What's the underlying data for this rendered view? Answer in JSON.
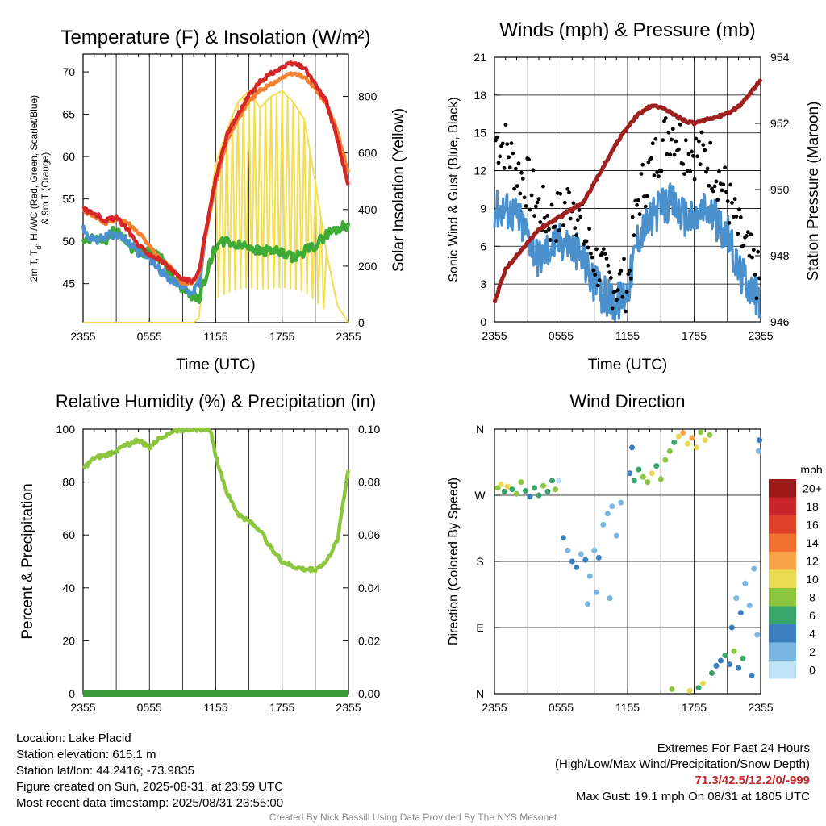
{
  "chart_data": [
    {
      "type": "line",
      "title": "Temperature (F) & Insolation (W/m²)",
      "xlabel": "Time (UTC)",
      "ylabel": "2m T, Td, HI/WC (Red, Green, Scarlet/Blue) & 9m T (Orange)",
      "ylabel_parts": [
        "2m T, T",
        "d",
        ", HI/WC (Red, Green, Scarlet/Blue)",
        "& 9m T (Orange)"
      ],
      "y2label": "Solar Insolation (Yellow)",
      "x_ticks": [
        "2355",
        "0555",
        "1155",
        "1755",
        "2355"
      ],
      "ylim": [
        40.4,
        72.1
      ],
      "y_ticks": [
        45,
        50,
        55,
        60,
        65,
        70
      ],
      "y2lim": [
        0,
        950
      ],
      "y2_ticks": [
        0,
        200,
        400,
        600,
        800
      ],
      "hours_offset": [
        0,
        1,
        2,
        3,
        4,
        5,
        6,
        7,
        8,
        9,
        10,
        10.5,
        11,
        12,
        13,
        14,
        15,
        16,
        17,
        18,
        19,
        20,
        21,
        22,
        23,
        24
      ],
      "series": [
        {
          "name": "2m T",
          "color": "#d62728",
          "axis": "left",
          "values": [
            53.8,
            53.3,
            52.5,
            52.8,
            51.5,
            49.5,
            48.5,
            47.8,
            46.5,
            45.5,
            45.3,
            46.5,
            50.5,
            57.5,
            62.5,
            65.0,
            67.2,
            68.8,
            69.8,
            70.5,
            71.0,
            70.5,
            68.5,
            66.5,
            62.0,
            56.5
          ]
        },
        {
          "name": "9m T",
          "color": "#f58231",
          "axis": "left",
          "values": [
            53.6,
            53.0,
            52.2,
            52.6,
            52.2,
            51.0,
            49.6,
            47.8,
            46.8,
            45.0,
            45.2,
            46.2,
            50.2,
            57.0,
            61.8,
            64.5,
            66.5,
            67.8,
            68.5,
            69.3,
            69.8,
            69.4,
            68.0,
            66.2,
            63.0,
            58.0
          ]
        },
        {
          "name": "Td",
          "color": "#3cab38",
          "axis": "left",
          "values": [
            49.8,
            50.3,
            50.0,
            51.5,
            49.8,
            48.5,
            49.0,
            48.0,
            46.0,
            44.5,
            43.5,
            43.2,
            45.5,
            49.5,
            50.0,
            49.5,
            49.5,
            48.8,
            49.0,
            48.5,
            48.0,
            48.8,
            49.5,
            50.8,
            51.5,
            52.0
          ]
        },
        {
          "name": "HI/WC",
          "color": "#4a90cc",
          "axis": "left",
          "values": [
            51.5,
            50.0,
            50.5,
            51.0,
            50.0,
            48.5,
            48.0,
            46.5,
            45.5,
            44.5,
            44.0,
            45.0,
            49.8
          ]
        },
        {
          "name": "Insolation",
          "color": "#f2de55",
          "axis": "right",
          "values": [
            0,
            0,
            0,
            0,
            0,
            0,
            0,
            0,
            0,
            0,
            0,
            20,
            300,
            560,
            680,
            780,
            820,
            760,
            800,
            820,
            780,
            720,
            500,
            250,
            60,
            0
          ]
        }
      ]
    },
    {
      "type": "line",
      "title": "Winds (mph) & Pressure (mb)",
      "xlabel": "Time (UTC)",
      "ylabel": "Sonic Wind & Gust (Blue, Black)",
      "y2label": "Station Pressure (Maroon)",
      "x_ticks": [
        "2355",
        "0555",
        "1155",
        "1755",
        "2355"
      ],
      "ylim": [
        0,
        21
      ],
      "y_ticks": [
        0,
        3,
        6,
        9,
        12,
        15,
        18,
        21
      ],
      "y2lim": [
        946,
        954
      ],
      "y2_ticks": [
        946,
        948,
        950,
        952,
        954
      ],
      "hours_offset": [
        0,
        1,
        2,
        3,
        4,
        5,
        6,
        7,
        8,
        9,
        10,
        11,
        12,
        13,
        14,
        15,
        16,
        17,
        18,
        19,
        20,
        21,
        22,
        23,
        24
      ],
      "series": [
        {
          "name": "Sonic Wind",
          "color": "#4a90cc",
          "axis": "left",
          "values": [
            9,
            9,
            8.5,
            7,
            5,
            6,
            6.5,
            6,
            5,
            3,
            2,
            1.5,
            2.5,
            7,
            8,
            9,
            9.5,
            8.5,
            8,
            9,
            8,
            7,
            4,
            3,
            1.5
          ]
        },
        {
          "name": "Gust",
          "color": "#000000",
          "axis": "left",
          "values": [
            14.5,
            14,
            12,
            11,
            9,
            8,
            8.5,
            10,
            7,
            5,
            3.5,
            3,
            3,
            10,
            12,
            14,
            15.5,
            14,
            13.5,
            13,
            12,
            10,
            7,
            5,
            3
          ]
        },
        {
          "name": "Station Pressure",
          "color": "#a02020",
          "axis": "right",
          "values": [
            946.6,
            947.6,
            948.0,
            948.4,
            948.8,
            949.0,
            949.2,
            949.4,
            949.6,
            950.2,
            950.8,
            951.4,
            951.9,
            952.3,
            952.5,
            952.5,
            952.3,
            952.1,
            952.0,
            952.1,
            952.2,
            952.3,
            952.5,
            952.9,
            953.3
          ]
        }
      ]
    },
    {
      "type": "line",
      "title": "Relative Humidity (%) & Precipitation (in)",
      "ylabel": "Percent & Precipitation",
      "x_ticks": [
        "2355",
        "0555",
        "1155",
        "1755",
        "2355"
      ],
      "ylim": [
        0,
        100
      ],
      "y_ticks": [
        0,
        20,
        40,
        60,
        80,
        100
      ],
      "y2lim": [
        0,
        0.1
      ],
      "y2_ticks": [
        "0.00",
        "0.02",
        "0.04",
        "0.06",
        "0.08",
        "0.10"
      ],
      "hours_offset": [
        0,
        1,
        2,
        3,
        4,
        5,
        6,
        7,
        8,
        9,
        10,
        11,
        11.5,
        12,
        13,
        14,
        15,
        16,
        17,
        18,
        19,
        20,
        21,
        22,
        23,
        23.5,
        24
      ],
      "series": [
        {
          "name": "Relative Humidity",
          "color": "#8cc63f",
          "axis": "left",
          "values": [
            85,
            89,
            90,
            92,
            94,
            96,
            93,
            97,
            99,
            100,
            100,
            100,
            100,
            90,
            76,
            68,
            65,
            62,
            55,
            50,
            48,
            47,
            47,
            50,
            58,
            72,
            85
          ]
        },
        {
          "name": "Precipitation",
          "color": "#3a9a3a",
          "axis": "right",
          "values": [
            0,
            0,
            0,
            0,
            0,
            0,
            0,
            0,
            0,
            0,
            0,
            0,
            0,
            0,
            0,
            0,
            0,
            0,
            0,
            0,
            0,
            0,
            0,
            0,
            0,
            0,
            0
          ]
        }
      ]
    },
    {
      "type": "scatter",
      "title": "Wind Direction",
      "ylabel": "Direction (Colored By Speed)",
      "x_ticks": [
        "2355",
        "0555",
        "1155",
        "1755",
        "2355"
      ],
      "y_ticks": [
        "N",
        "E",
        "S",
        "W",
        "N"
      ],
      "ylim": [
        0,
        360
      ],
      "points": [
        {
          "h": 0.3,
          "dir": 280,
          "spd": 7
        },
        {
          "h": 0.6,
          "dir": 285,
          "spd": 9
        },
        {
          "h": 0.9,
          "dir": 275,
          "spd": 5
        },
        {
          "h": 1.2,
          "dir": 282,
          "spd": 10
        },
        {
          "h": 1.6,
          "dir": 278,
          "spd": 6
        },
        {
          "h": 2.0,
          "dir": 272,
          "spd": 7
        },
        {
          "h": 2.4,
          "dir": 288,
          "spd": 8
        },
        {
          "h": 2.8,
          "dir": 276,
          "spd": 6
        },
        {
          "h": 3.2,
          "dir": 268,
          "spd": 4
        },
        {
          "h": 3.6,
          "dir": 280,
          "spd": 5
        },
        {
          "h": 4.0,
          "dir": 270,
          "spd": 6
        },
        {
          "h": 4.4,
          "dir": 283,
          "spd": 8
        },
        {
          "h": 4.8,
          "dir": 275,
          "spd": 6
        },
        {
          "h": 5.2,
          "dir": 290,
          "spd": 5
        },
        {
          "h": 5.5,
          "dir": 278,
          "spd": 7
        },
        {
          "h": 6.2,
          "dir": 212,
          "spd": 3
        },
        {
          "h": 6.6,
          "dir": 195,
          "spd": 2
        },
        {
          "h": 7.0,
          "dir": 180,
          "spd": 3
        },
        {
          "h": 7.4,
          "dir": 172,
          "spd": 4
        },
        {
          "h": 7.8,
          "dir": 190,
          "spd": 2
        },
        {
          "h": 8.2,
          "dir": 182,
          "spd": 3
        },
        {
          "h": 8.6,
          "dir": 160,
          "spd": 1
        },
        {
          "h": 9.0,
          "dir": 195,
          "spd": 2
        },
        {
          "h": 9.4,
          "dir": 185,
          "spd": 3
        },
        {
          "h": 9.8,
          "dir": 230,
          "spd": 1
        },
        {
          "h": 10.2,
          "dir": 245,
          "spd": 2
        },
        {
          "h": 10.6,
          "dir": 255,
          "spd": 1
        },
        {
          "h": 11.0,
          "dir": 215,
          "spd": 2
        },
        {
          "h": 11.4,
          "dir": 260,
          "spd": 2
        },
        {
          "h": 8.4,
          "dir": 122,
          "spd": 1
        },
        {
          "h": 9.2,
          "dir": 138,
          "spd": 2
        },
        {
          "h": 10.4,
          "dir": 130,
          "spd": 1
        },
        {
          "h": 5.8,
          "dir": 290,
          "spd": 0
        },
        {
          "h": 12.2,
          "dir": 300,
          "spd": 4
        },
        {
          "h": 12.6,
          "dir": 290,
          "spd": 6
        },
        {
          "h": 13.0,
          "dir": 305,
          "spd": 5
        },
        {
          "h": 13.4,
          "dir": 295,
          "spd": 8
        },
        {
          "h": 13.8,
          "dir": 288,
          "spd": 7
        },
        {
          "h": 14.2,
          "dir": 300,
          "spd": 9
        },
        {
          "h": 14.6,
          "dir": 310,
          "spd": 6
        },
        {
          "h": 15.0,
          "dir": 292,
          "spd": 8
        },
        {
          "h": 12.4,
          "dir": 335,
          "spd": 3
        },
        {
          "h": 15.4,
          "dir": 318,
          "spd": 7
        },
        {
          "h": 15.8,
          "dir": 330,
          "spd": 8
        },
        {
          "h": 16.2,
          "dir": 342,
          "spd": 6
        },
        {
          "h": 16.6,
          "dir": 350,
          "spd": 9
        },
        {
          "h": 17.0,
          "dir": 355,
          "spd": 11
        },
        {
          "h": 17.4,
          "dir": 340,
          "spd": 10
        },
        {
          "h": 17.8,
          "dir": 348,
          "spd": 12
        },
        {
          "h": 18.2,
          "dir": 335,
          "spd": 9
        },
        {
          "h": 18.6,
          "dir": 356,
          "spd": 8
        },
        {
          "h": 19.0,
          "dir": 345,
          "spd": 10
        },
        {
          "h": 19.4,
          "dir": 352,
          "spd": 7
        },
        {
          "h": 16.0,
          "dir": 6,
          "spd": 7
        },
        {
          "h": 17.6,
          "dir": 4,
          "spd": 9
        },
        {
          "h": 18.4,
          "dir": 8,
          "spd": 6
        },
        {
          "h": 18.8,
          "dir": 14,
          "spd": 10
        },
        {
          "h": 19.6,
          "dir": 28,
          "spd": 5
        },
        {
          "h": 20.0,
          "dir": 38,
          "spd": 4
        },
        {
          "h": 20.4,
          "dir": 45,
          "spd": 3
        },
        {
          "h": 20.8,
          "dir": 52,
          "spd": 6
        },
        {
          "h": 21.2,
          "dir": 40,
          "spd": 4
        },
        {
          "h": 21.6,
          "dir": 58,
          "spd": 7
        },
        {
          "h": 22.0,
          "dir": 35,
          "spd": 3
        },
        {
          "h": 22.4,
          "dir": 48,
          "spd": 5
        },
        {
          "h": 21.4,
          "dir": 90,
          "spd": 3
        },
        {
          "h": 21.8,
          "dir": 130,
          "spd": 2
        },
        {
          "h": 22.2,
          "dir": 110,
          "spd": 4
        },
        {
          "h": 22.6,
          "dir": 150,
          "spd": 2
        },
        {
          "h": 23.0,
          "dir": 120,
          "spd": 1
        },
        {
          "h": 23.4,
          "dir": 170,
          "spd": 1
        },
        {
          "h": 23.7,
          "dir": 80,
          "spd": 2
        },
        {
          "h": 23.8,
          "dir": 330,
          "spd": 1
        },
        {
          "h": 23.9,
          "dir": 345,
          "spd": 3
        },
        {
          "h": 23.2,
          "dir": 25,
          "spd": 3
        }
      ],
      "legend": {
        "title": "mph",
        "labels": [
          "20+",
          "18",
          "16",
          "14",
          "12",
          "10",
          "8",
          "6",
          "4",
          "2",
          "0"
        ],
        "colors": [
          "#9e1a1a",
          "#c8242a",
          "#e0402a",
          "#f07030",
          "#f7a448",
          "#e9da52",
          "#8cc63f",
          "#3aa56a",
          "#3b7fc0",
          "#7ab6e3",
          "#bfe3f7"
        ]
      }
    }
  ],
  "info": {
    "location": "Location: Lake Placid",
    "elevation": "Station elevation: 615.1 m",
    "latlon": "Station lat/lon: 44.2416; -73.9835",
    "created": "Figure created on Sun, 2025-08-31, at 23:59 UTC",
    "recent": "Most recent data timestamp: 2025/08/31 23:55:00"
  },
  "extremes": {
    "title": "Extremes For Past 24 Hours",
    "subtitle": "(High/Low/Max Wind/Precipitation/Snow Depth)",
    "values": "71.3/42.5/12.2/0/-999",
    "gust": "Max Gust: 19.1 mph On 08/31 at 1805 UTC"
  },
  "credit": "Created By Nick Bassill Using Data Provided By The NYS Mesonet"
}
